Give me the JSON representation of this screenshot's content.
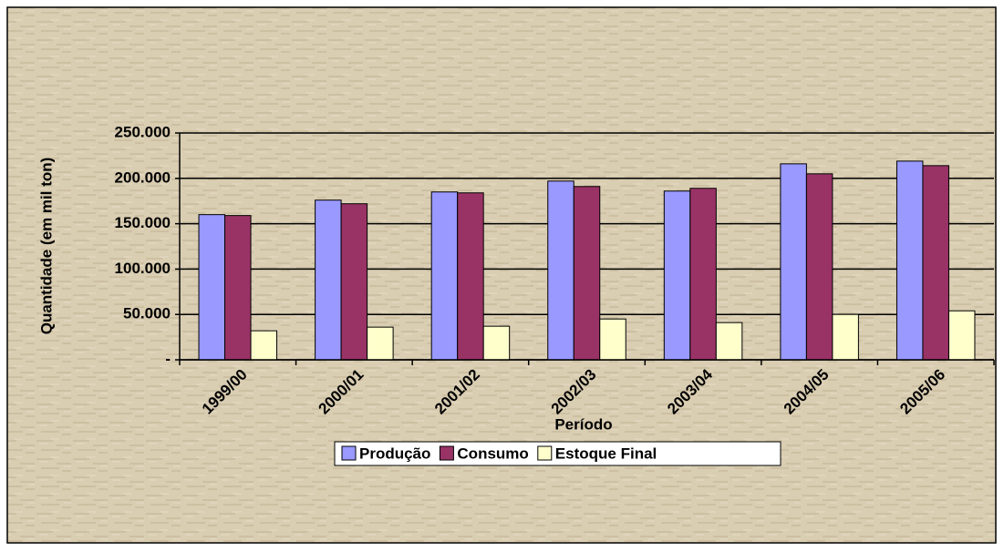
{
  "chart_data": {
    "type": "bar",
    "y_label": "Quantidade (em mil ton)",
    "x_label": "Período",
    "categories": [
      "1999/00",
      "2000/01",
      "2001/02",
      "2002/03",
      "2003/04",
      "2004/05",
      "2005/06"
    ],
    "series": [
      {
        "name": "Produção",
        "color": "#9999ff",
        "values": [
          160000,
          176000,
          185000,
          197000,
          186000,
          216000,
          219000
        ]
      },
      {
        "name": "Consumo",
        "color": "#993366",
        "values": [
          159000,
          172000,
          184000,
          191000,
          189000,
          205000,
          214000
        ]
      },
      {
        "name": "Estoque Final",
        "color": "#ffffcc",
        "values": [
          32000,
          36000,
          37000,
          45000,
          41000,
          50000,
          54000
        ]
      }
    ],
    "ylim": [
      0,
      250000
    ],
    "yticks": [
      {
        "value": 0,
        "label": "-"
      },
      {
        "value": 50000,
        "label": "50.000"
      },
      {
        "value": 100000,
        "label": "100.000"
      },
      {
        "value": 150000,
        "label": "150.000"
      },
      {
        "value": 200000,
        "label": "200.000"
      },
      {
        "value": 250000,
        "label": "250.000"
      }
    ],
    "grid": true,
    "legend": "bottom"
  }
}
